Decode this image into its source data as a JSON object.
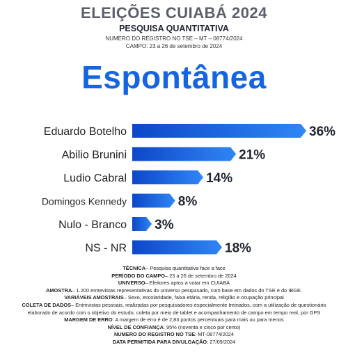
{
  "header": {
    "title": "ELEIÇÕES CUIABÁ 2024",
    "subtitle": "PESQUISA QUANTITATIVA",
    "registro": "NUMERO DO REGISTRO NO TSE – MT – 08774/2024",
    "campo": "CAMPO: 23 a 26 de setembro de 2024"
  },
  "chart_data": {
    "type": "bar",
    "orientation": "horizontal",
    "title": "Espontânea",
    "categories": [
      "Eduardo Botelho",
      "Abilio Brunini",
      "Ludio Cabral",
      "Domingos Kennedy",
      "Nulo - Branco",
      "NS - NR"
    ],
    "values": [
      36,
      21,
      14,
      8,
      3,
      18
    ],
    "value_labels": [
      "36%",
      "21%",
      "14%",
      "8%",
      "3%",
      "18%"
    ],
    "xlim": [
      0,
      36
    ],
    "bar_color_start": "#0d47c8",
    "bar_color_end": "#2f86f5",
    "grid": false,
    "legend": "none"
  },
  "footer": {
    "items": [
      {
        "label": "TÉCNICA",
        "text": "– Pesquisa quantitativa face a face"
      },
      {
        "label": "PERÍODO DO CAMPO",
        "text": "– 23 a 26 de setembro de 2024"
      },
      {
        "label": "UNIVERSO",
        "text": "– Eleitores aptos a votar em CUIABÁ"
      },
      {
        "label": "AMOSTRA",
        "text": "– 1.200 entrevistas representativas do universo pesquisado, com base em dados do TSE e do IBGE."
      },
      {
        "label": "VARIÁVEIS AMOSTRAIS",
        "text": "– Sexo, escolaridade, faixa etária, renda, religião e ocupação principal"
      },
      {
        "label": "COLETA DE DADOS",
        "text": "– Entrevistas pessoais, realizadas por pesquisadores especialmente treinados, com a utilização de questionário elaborado de acordo com o objetivo do estudo; coleta por meio de tablet e acompanhamento de campo em tempo real, por GPS"
      },
      {
        "label": "MARGEM DE ERRO",
        "text": ": A margem de erro é de 2,83 pontos percentuais para mais ou para menos"
      },
      {
        "label": "NÍVEL DE CONFIANÇA",
        "text": ": 95% (noventa e cinco por cento)"
      },
      {
        "label": "NUMERO DO REGISTRO NO TSE",
        "text": ": MT-08774/2024"
      },
      {
        "label": "DATA PERMITIDA PARA DIVULGAÇÃO",
        "text": ": 27/09/2024"
      }
    ]
  }
}
